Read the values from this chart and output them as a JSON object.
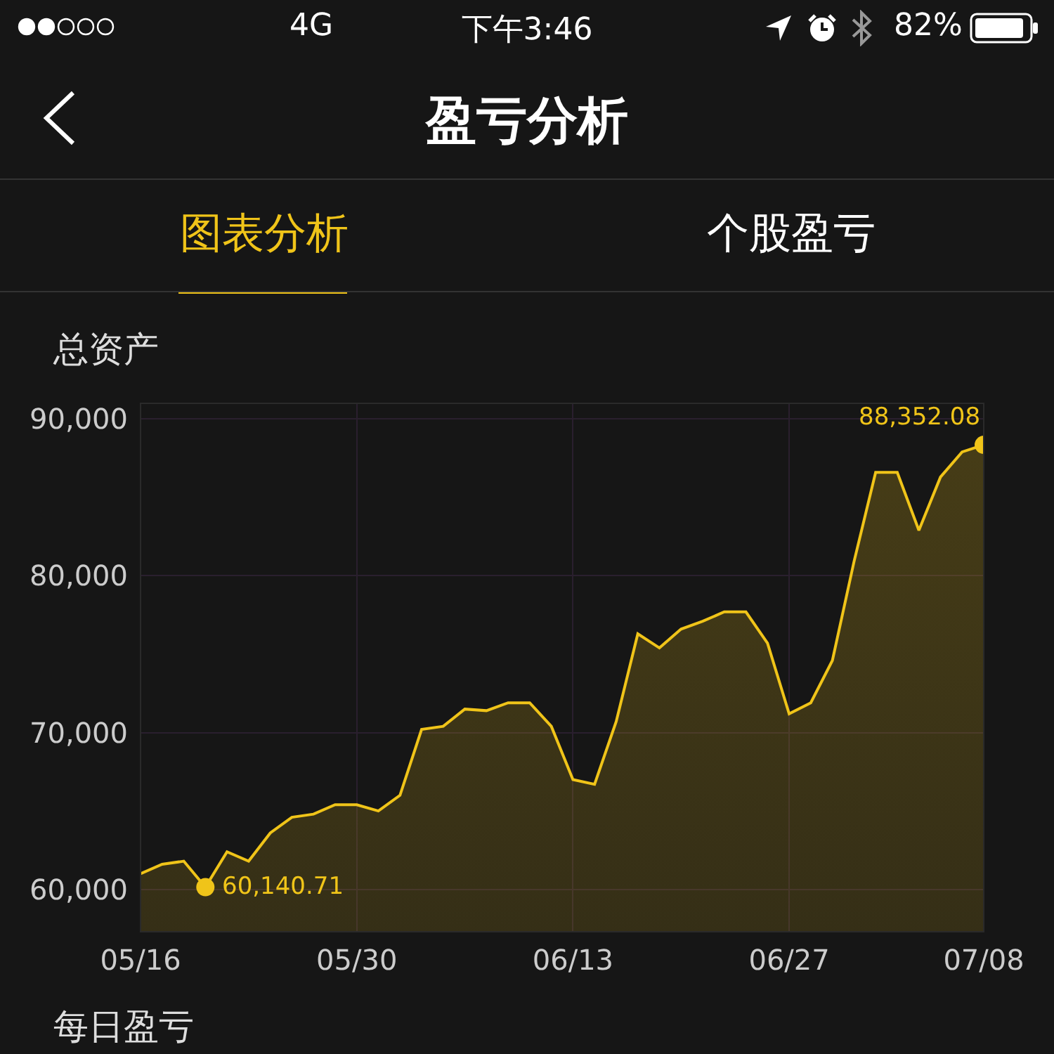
{
  "chart_data": {
    "type": "area",
    "title": "总资产",
    "categories": [
      "05/16",
      null,
      null,
      null,
      null,
      null,
      null,
      null,
      null,
      null,
      "05/30",
      null,
      null,
      null,
      null,
      null,
      null,
      null,
      null,
      null,
      "06/13",
      null,
      null,
      null,
      null,
      null,
      null,
      null,
      null,
      null,
      "06/27",
      null,
      null,
      null,
      null,
      null,
      null,
      null,
      null,
      "07/08"
    ],
    "series": [
      {
        "color": "#f0c419",
        "values": [
          61000,
          61600,
          61800,
          60140.71,
          62400,
          61800,
          63600,
          64600,
          64800,
          65400,
          65400,
          65000,
          66000,
          70200,
          70400,
          71500,
          71400,
          71900,
          71900,
          70400,
          67000,
          66700,
          70700,
          76300,
          75400,
          76600,
          77100,
          77700,
          77700,
          75700,
          71200,
          71900,
          74600,
          80900,
          86600,
          86600,
          82900,
          86300,
          87900,
          88352.08
        ],
        "value_labels": [
          null,
          null,
          null,
          "60,140.71",
          null,
          null,
          null,
          null,
          null,
          null,
          null,
          null,
          null,
          null,
          null,
          null,
          null,
          null,
          null,
          null,
          null,
          null,
          null,
          null,
          null,
          null,
          null,
          null,
          null,
          null,
          null,
          null,
          null,
          null,
          null,
          null,
          null,
          null,
          null,
          "88,352.08"
        ]
      }
    ],
    "ylim": [
      57300,
      91000
    ],
    "yticks": [
      {
        "value": 60000,
        "label": "60,000"
      },
      {
        "value": 70000,
        "label": "70,000"
      },
      {
        "value": 80000,
        "label": "80,000"
      },
      {
        "value": 90000,
        "label": "90,000"
      }
    ],
    "grid": true,
    "annotations": [
      "盈亏分析",
      "图表分析",
      "个股盈亏",
      "每日盈亏",
      "下午3:46",
      "4G",
      "82%"
    ]
  }
}
